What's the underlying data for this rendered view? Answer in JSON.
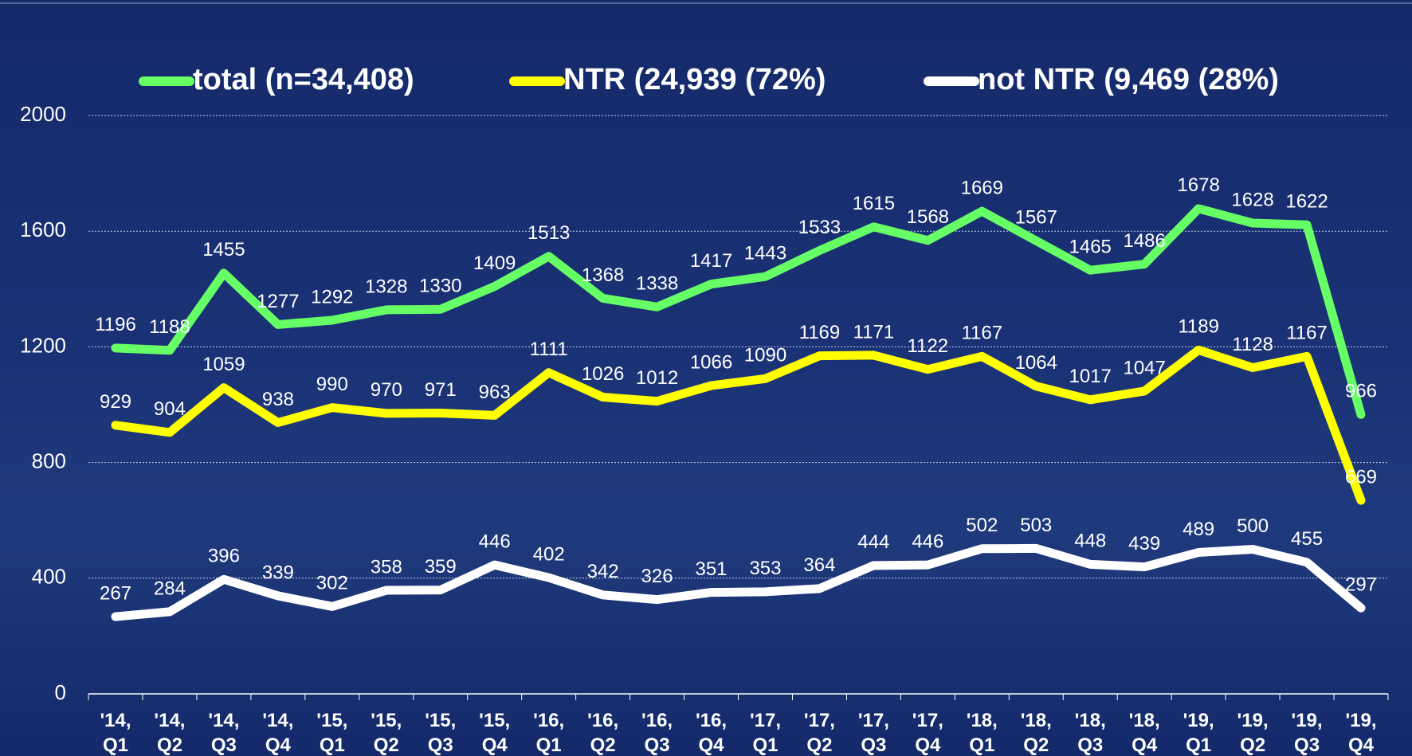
{
  "chart_data": {
    "type": "line",
    "categories": [
      "'14, Q1",
      "'14, Q2",
      "'14, Q3",
      "'14, Q4",
      "'15, Q1",
      "'15, Q2",
      "'15, Q3",
      "'15, Q4",
      "'16, Q1",
      "'16, Q2",
      "'16, Q3",
      "'16, Q4",
      "'17, Q1",
      "'17, Q2",
      "'17, Q3",
      "'17, Q4",
      "'18, Q1",
      "'18, Q2",
      "'18, Q3",
      "'18, Q4",
      "'19, Q1",
      "'19, Q2",
      "'19, Q3",
      "'19, Q4"
    ],
    "series": [
      {
        "name": "total (n=34,408)",
        "color": "#66ff66",
        "label_color": "#ffffff",
        "values": [
          1196,
          1188,
          1455,
          1277,
          1292,
          1328,
          1330,
          1409,
          1513,
          1368,
          1338,
          1417,
          1443,
          1533,
          1615,
          1568,
          1669,
          1567,
          1465,
          1486,
          1678,
          1628,
          1622,
          966
        ]
      },
      {
        "name": "NTR (24,939 (72%)",
        "color": "#ffff00",
        "label_color": "#ffff00",
        "values": [
          929,
          904,
          1059,
          938,
          990,
          970,
          971,
          963,
          1111,
          1026,
          1012,
          1066,
          1090,
          1169,
          1171,
          1122,
          1167,
          1064,
          1017,
          1047,
          1189,
          1128,
          1167,
          669
        ]
      },
      {
        "name": "not NTR (9,469 (28%)",
        "color": "#ffffff",
        "label_color": "#ffffff",
        "values": [
          267,
          284,
          396,
          339,
          302,
          358,
          359,
          446,
          402,
          342,
          326,
          351,
          353,
          364,
          444,
          446,
          502,
          503,
          448,
          439,
          489,
          500,
          455,
          297
        ]
      }
    ],
    "ylim": [
      0,
      2000
    ],
    "yticks": [
      0,
      400,
      800,
      1200,
      1600,
      2000
    ],
    "grid": true
  }
}
